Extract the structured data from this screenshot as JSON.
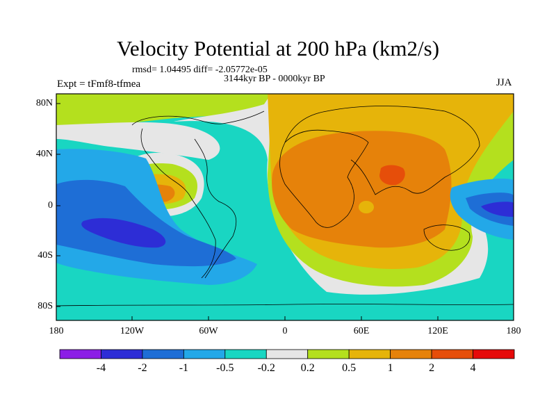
{
  "title": "Velocity Potential at 200 hPa (km2/s)",
  "stats": {
    "rmsd_diff": "rmsd= 1.04495 diff= -2.05772e-05"
  },
  "period": "3144kyr BP - 0000kyr BP",
  "experiment": "Expt = tFmf8-tfmea",
  "season": "JJA",
  "map": {
    "projection": "cylindrical equidistant",
    "lon_range": [
      -180,
      180
    ],
    "lat_range": [
      -90,
      90
    ],
    "lat_labels": [
      "80N",
      "40N",
      "0",
      "40S",
      "80S"
    ],
    "lon_labels": [
      "180",
      "120W",
      "60W",
      "0",
      "60E",
      "120E",
      "180"
    ],
    "field": "velocity potential difference",
    "features": [
      {
        "region": "North Africa / Indian Ocean / Asia",
        "sign": "positive",
        "peak_range": "2 to 4",
        "center": "Tibetan Plateau / Bay of Bengal"
      },
      {
        "region": "Eastern tropical Pacific off Central America",
        "sign": "positive",
        "peak_range": "1 to 2"
      },
      {
        "region": "South-central Pacific",
        "sign": "negative",
        "peak_range": "-4 to -2"
      },
      {
        "region": "Western tropical Pacific",
        "sign": "negative",
        "peak_range": "-4 to -2"
      },
      {
        "region": "Arctic / northern high latitudes",
        "sign": "positive",
        "peak_range": "0.2 to 1"
      }
    ]
  },
  "colorbar": {
    "labels": [
      "-4",
      "-2",
      "-1",
      "-0.5",
      "-0.2",
      "0.2",
      "0.5",
      "1",
      "2",
      "4"
    ],
    "colors": [
      "#8c1ee6",
      "#2d2dd6",
      "#1e6ed6",
      "#23a8e8",
      "#19d6c2",
      "#e6e6e6",
      "#b4e01e",
      "#e6b40a",
      "#e6820a",
      "#e64e0a",
      "#e60a0a"
    ]
  }
}
